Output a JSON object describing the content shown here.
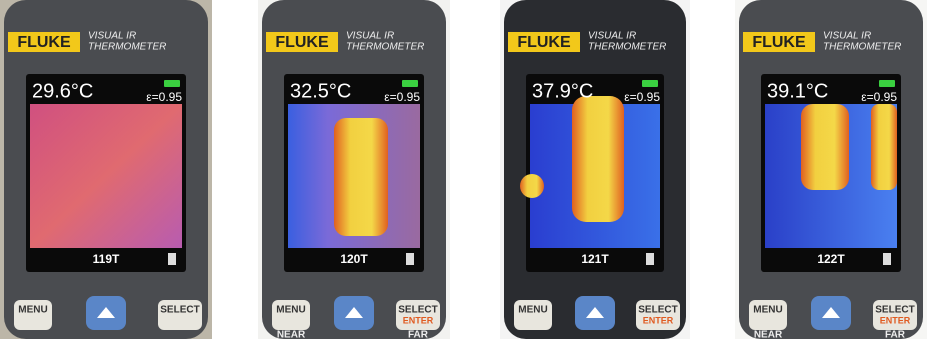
{
  "panels": [
    {
      "brand": "FLUKE",
      "model_1": "VISUAL IR",
      "model_2": "THERMOMETER",
      "temperature": "29.6°C",
      "emissivity": "ε=0.95",
      "image_id": "119T",
      "menu": "MENU",
      "select": "SELECT"
    },
    {
      "brand": "FLUKE",
      "model_1": "VISUAL IR",
      "model_2": "THERMOMETER",
      "temperature": "32.5°C",
      "emissivity": "ε=0.95",
      "image_id": "120T",
      "menu": "MENU",
      "select": "SELECT",
      "enter": "ENTER",
      "near": "NEAR",
      "far": "FAR"
    },
    {
      "brand": "FLUKE",
      "model_1": "VISUAL IR",
      "model_2": "THERMOMETER",
      "temperature": "37.9°C",
      "emissivity": "ε=0.95",
      "image_id": "121T",
      "menu": "MENU",
      "select": "SELECT",
      "enter": "ENTER"
    },
    {
      "brand": "FLUKE",
      "model_1": "VISUAL IR",
      "model_2": "THERMOMETER",
      "temperature": "39.1°C",
      "emissivity": "ε=0.95",
      "image_id": "122T",
      "menu": "MENU",
      "select": "SELECT",
      "enter": "ENTER",
      "near": "NEAR",
      "far": "FAR"
    }
  ]
}
